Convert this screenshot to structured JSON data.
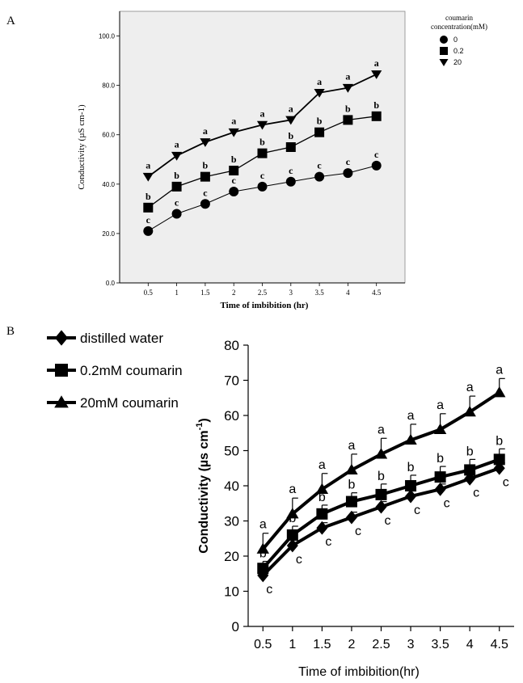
{
  "chart_data": [
    {
      "panel_label": "A",
      "type": "line",
      "x": [
        0.5,
        1,
        1.5,
        2,
        2.5,
        3,
        3.5,
        4,
        4.5
      ],
      "x_tick_labels": [
        "0.5",
        "1",
        "1.5",
        "2",
        "2.5",
        "3",
        "3.5",
        "4",
        "4.5"
      ],
      "y_tick_labels": [
        "0.0",
        "20.0",
        "40.0",
        "60.0",
        "80.0",
        "100.0"
      ],
      "y_ticks": [
        0,
        20,
        40,
        60,
        80,
        100
      ],
      "xlabel": "Time of imbibition (hr)",
      "ylabel": "Conductivity (µS cm-1)",
      "ylim": [
        0,
        110
      ],
      "grid": false,
      "legend_title": "coumarin concentration(mM)",
      "legend_title_lines": [
        "coumarin",
        "concentration(mM)"
      ],
      "legend_position": "outside-top-right",
      "plot_background": "#eeeeee",
      "series": [
        {
          "name": "0",
          "marker": "circle",
          "line_width": 1,
          "values": [
            21,
            28,
            32,
            37,
            39,
            41,
            43,
            44.5,
            47.5
          ],
          "letters": [
            "c",
            "c",
            "c",
            "c",
            "c",
            "c",
            "c",
            "c",
            "c"
          ]
        },
        {
          "name": "0.2",
          "marker": "square",
          "line_width": 1.3,
          "values": [
            30.5,
            39,
            43,
            45.5,
            52.5,
            55,
            61,
            66,
            67.5
          ],
          "letters": [
            "b",
            "b",
            "b",
            "b",
            "b",
            "b",
            "b",
            "b",
            "b"
          ]
        },
        {
          "name": "20",
          "marker": "triangle-down",
          "line_width": 1.8,
          "values": [
            43,
            51.5,
            57,
            61,
            64,
            66,
            77,
            79,
            84.5
          ],
          "letters": [
            "a",
            "a",
            "a",
            "a",
            "a",
            "a",
            "a",
            "a",
            "a"
          ]
        }
      ]
    },
    {
      "panel_label": "B",
      "type": "line",
      "x": [
        0.5,
        1,
        1.5,
        2,
        2.5,
        3,
        3.5,
        4,
        4.5
      ],
      "x_tick_labels": [
        "0.5",
        "1",
        "1.5",
        "2",
        "2.5",
        "3",
        "3.5",
        "4",
        "4.5"
      ],
      "y_tick_labels": [
        "0",
        "10",
        "20",
        "30",
        "40",
        "50",
        "60",
        "70",
        "80"
      ],
      "y_ticks": [
        0,
        10,
        20,
        30,
        40,
        50,
        60,
        70,
        80
      ],
      "xlabel": "Time of imbibition(hr)",
      "ylabel_main": "Conductivity (µs cm",
      "ylabel_sup": "-1",
      "ylabel_end": ")",
      "ylim": [
        0,
        80
      ],
      "grid": false,
      "legend_position": "top-left",
      "series": [
        {
          "name": "distilled water",
          "marker": "diamond",
          "values": [
            14.5,
            23,
            28,
            31,
            34,
            37,
            39,
            42,
            45
          ],
          "errors": [
            1,
            1.5,
            1.5,
            1.5,
            1.5,
            1.5,
            1.5,
            1.5,
            1.5
          ],
          "letters": [
            "c",
            "c",
            "c",
            "c",
            "c",
            "c",
            "c",
            "c",
            "c"
          ]
        },
        {
          "name": "0.2mM coumarin",
          "marker": "square",
          "values": [
            16.5,
            26,
            32,
            35.5,
            37.5,
            40,
            42.5,
            44.5,
            47.5
          ],
          "errors": [
            2,
            2.5,
            2.5,
            2.5,
            3,
            3,
            3,
            3,
            3
          ],
          "letters": [
            "b",
            "b",
            "b",
            "b",
            "b",
            "b",
            "b",
            "b",
            "b"
          ]
        },
        {
          "name": "20mM coumarin",
          "marker": "triangle",
          "values": [
            22,
            32,
            39,
            44.5,
            49,
            53,
            56,
            61,
            66.5
          ],
          "errors": [
            4.5,
            4.5,
            4.5,
            4.5,
            4.5,
            4.5,
            4.5,
            4.5,
            4
          ],
          "letters": [
            "a",
            "a",
            "a",
            "a",
            "a",
            "a",
            "a",
            "a",
            "a"
          ]
        }
      ]
    }
  ]
}
